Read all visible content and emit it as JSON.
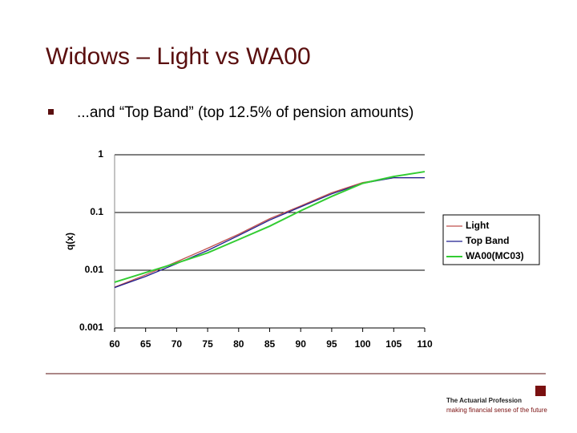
{
  "slide": {
    "title": "Widows – Light vs WA00",
    "bullet": "...and “Top Band” (top 12.5% of pension amounts)"
  },
  "chart_data": {
    "type": "line",
    "y_label": "q(x)",
    "log_scale": true,
    "grid": true,
    "legend": "right",
    "x": [
      60,
      65,
      70,
      75,
      80,
      85,
      90,
      95,
      100,
      105,
      110
    ],
    "xlim": [
      60,
      110
    ],
    "xticks": [
      60,
      65,
      70,
      75,
      80,
      85,
      90,
      95,
      100,
      105,
      110
    ],
    "ylim": [
      0.001,
      1
    ],
    "yticks": [
      0.001,
      0.01,
      0.1,
      1
    ],
    "series": [
      {
        "name": "Light",
        "color": "#c0504d",
        "values": [
          0.0051,
          0.0083,
          0.014,
          0.024,
          0.042,
          0.078,
          0.13,
          0.22,
          0.33,
          0.4,
          0.4
        ]
      },
      {
        "name": "Top Band",
        "color": "#1f1f8f",
        "values": [
          0.005,
          0.0078,
          0.013,
          0.022,
          0.04,
          0.074,
          0.125,
          0.21,
          0.32,
          0.4,
          0.4
        ]
      },
      {
        "name": "WA00(MC03)",
        "color": "#33cc33",
        "values": [
          0.0062,
          0.0091,
          0.0133,
          0.02,
          0.034,
          0.058,
          0.107,
          0.19,
          0.32,
          0.42,
          0.51
        ]
      }
    ]
  },
  "footer": {
    "organization": "The Actuarial Profession",
    "tagline": "making financial sense of the future"
  }
}
